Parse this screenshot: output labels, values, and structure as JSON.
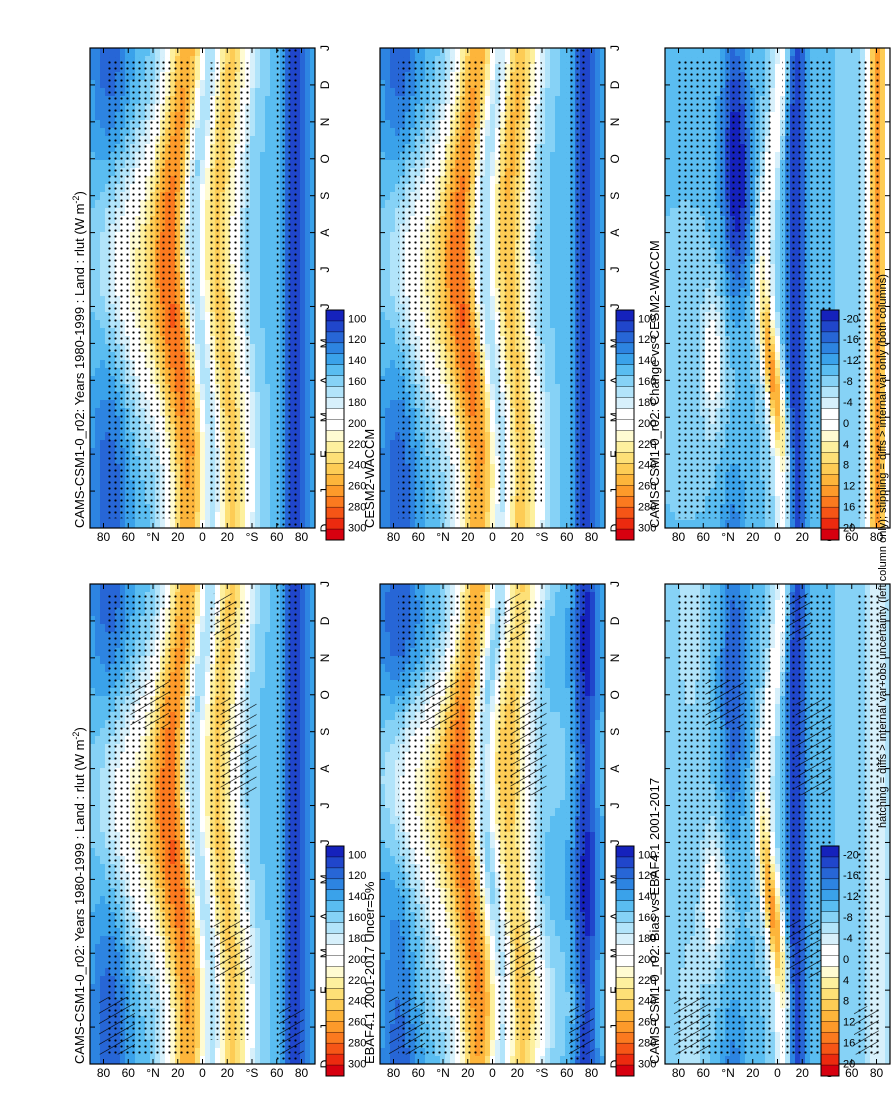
{
  "figure": {
    "footnote": "hatching = diffs > internal var+obs uncertainty (left column only); stippling = diffs > internal var only (both columns)"
  },
  "colors": {
    "abs": [
      "#d7000f",
      "#ec2a0f",
      "#f65516",
      "#fb7a1f",
      "#fd9a2a",
      "#fdb53b",
      "#fdcc55",
      "#fde077",
      "#fdf09e",
      "#fffbd2",
      "#ffffff",
      "#ffffff",
      "#d7f0fb",
      "#b2e4fa",
      "#86d2f6",
      "#5abdf1",
      "#3aa2ea",
      "#2d84e1",
      "#2766d6",
      "#2046cb",
      "#1522bc"
    ],
    "diff": [
      "#d7000f",
      "#ec2a0f",
      "#f65516",
      "#fb7a1f",
      "#fd9a2a",
      "#fdb53b",
      "#fdcc55",
      "#fde077",
      "#fdf09e",
      "#fffbd2",
      "#ffffff",
      "#ffffff",
      "#d7f0fb",
      "#b2e4fa",
      "#86d2f6",
      "#5abdf1",
      "#3aa2ea",
      "#2d84e1",
      "#2766d6",
      "#2046cb",
      "#1522bc"
    ]
  },
  "chart_data": [
    {
      "id": "p1",
      "type": "heatmap",
      "title": "CAMS-CSM1-0_r02: Years 1980-1999 : Land : rlut (W m",
      "title_sup": "-2",
      "title_end": ")",
      "months": [
        "D",
        "J",
        "F",
        "M",
        "A",
        "M",
        "J",
        "J",
        "A",
        "S",
        "O",
        "N",
        "D",
        "J"
      ],
      "lat_ticks": [
        "80",
        "60",
        "°N",
        "20",
        "0",
        "20",
        "°S",
        "60",
        "80"
      ],
      "colorbar": {
        "labels": [
          "300",
          "280",
          "260",
          "240",
          "220",
          "200",
          "180",
          "160",
          "140",
          "120",
          "100"
        ],
        "range": [
          100,
          300
        ],
        "step": 10
      },
      "hatching": true,
      "stippling": true
    },
    {
      "id": "p2",
      "type": "heatmap",
      "title": "CAMS-CSM1-0_r02: Years 1980-1999 : Land : rlut (W m",
      "title_sup": "-2",
      "title_end": ")",
      "months": [
        "D",
        "J",
        "F",
        "M",
        "A",
        "M",
        "J",
        "J",
        "A",
        "S",
        "O",
        "N",
        "D",
        "J"
      ],
      "lat_ticks": [
        "80",
        "60",
        "°N",
        "20",
        "0",
        "20",
        "°S",
        "60",
        "80"
      ],
      "colorbar": {
        "labels": [
          "300",
          "280",
          "260",
          "240",
          "220",
          "200",
          "180",
          "160",
          "140",
          "120",
          "100"
        ],
        "range": [
          100,
          300
        ],
        "step": 10
      },
      "hatching": false,
      "stippling": true
    },
    {
      "id": "p3",
      "type": "heatmap",
      "title": "EBAF4.1 2001-2017 Uncer=5%",
      "months": [
        "D",
        "J",
        "F",
        "M",
        "A",
        "M",
        "J",
        "J",
        "A",
        "S",
        "O",
        "N",
        "D",
        "J"
      ],
      "lat_ticks": [
        "80",
        "60",
        "°N",
        "20",
        "0",
        "20",
        "°S",
        "60",
        "80"
      ],
      "colorbar": {
        "labels": [
          "300",
          "280",
          "260",
          "240",
          "220",
          "200",
          "180",
          "160",
          "140",
          "120",
          "100"
        ],
        "range": [
          100,
          300
        ],
        "step": 10
      },
      "hatching": true,
      "stippling": true
    },
    {
      "id": "p4",
      "type": "heatmap",
      "title": "CESM2-WACCM",
      "months": [
        "D",
        "J",
        "F",
        "M",
        "A",
        "M",
        "J",
        "J",
        "A",
        "S",
        "O",
        "N",
        "D",
        "J"
      ],
      "lat_ticks": [
        "80",
        "60",
        "°N",
        "20",
        "0",
        "20",
        "°S",
        "60",
        "80"
      ],
      "colorbar": {
        "labels": [
          "300",
          "280",
          "260",
          "240",
          "220",
          "200",
          "180",
          "160",
          "140",
          "120",
          "100"
        ],
        "range": [
          100,
          300
        ],
        "step": 10
      },
      "hatching": false,
      "stippling": true
    },
    {
      "id": "p5",
      "type": "heatmap",
      "title": "CAMS-CSM1-0_r02: Bias vs EBAF4.1 2001-2017",
      "months": [
        "D",
        "J",
        "F",
        "M",
        "A",
        "M",
        "J",
        "J",
        "A",
        "S",
        "O",
        "N",
        "D",
        "J"
      ],
      "lat_ticks": [
        "80",
        "60",
        "°N",
        "20",
        "0",
        "20",
        "°S",
        "60",
        "80"
      ],
      "colorbar": {
        "labels": [
          "20",
          "16",
          "12",
          "8",
          "4",
          "0",
          "-4",
          "-8",
          "-12",
          "-16",
          "-20"
        ],
        "range": [
          -21,
          21
        ],
        "step": 2
      },
      "hatching": true,
      "stippling": true
    },
    {
      "id": "p6",
      "type": "heatmap",
      "title": "CAMS-CSM1-0_r02: Change vs CESM2-WACCM",
      "months": [
        "D",
        "J",
        "F",
        "M",
        "A",
        "M",
        "J",
        "J",
        "A",
        "S",
        "O",
        "N",
        "D",
        "J"
      ],
      "lat_ticks": [
        "80",
        "60",
        "°N",
        "20",
        "0",
        "20",
        "°S",
        "60",
        "80"
      ],
      "colorbar": {
        "labels": [
          "20",
          "16",
          "12",
          "8",
          "4",
          "0",
          "-4",
          "-8",
          "-12",
          "-16",
          "-20"
        ],
        "range": [
          -21,
          21
        ],
        "step": 2
      },
      "hatching": false,
      "stippling": true
    }
  ]
}
